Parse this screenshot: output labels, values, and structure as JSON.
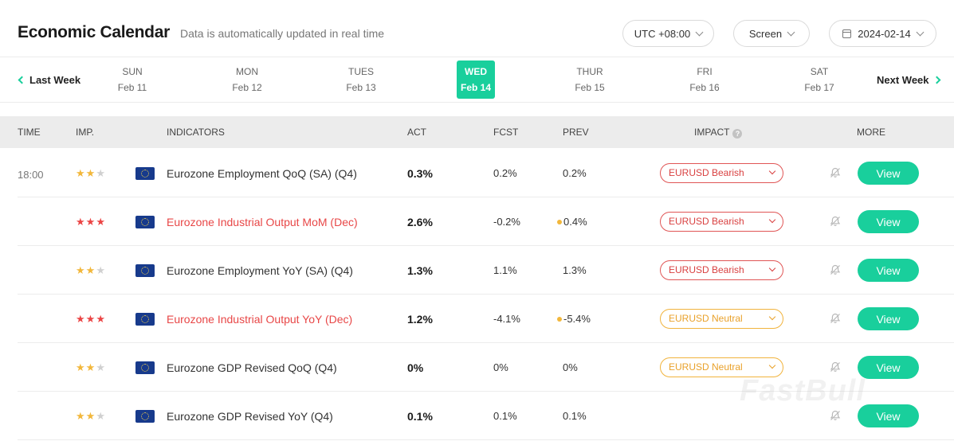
{
  "header": {
    "title": "Economic Calendar",
    "subtitle": "Data is automatically updated in real time",
    "timezone": "UTC +08:00",
    "screen_label": "Screen",
    "date": "2024-02-14"
  },
  "week_nav": {
    "prev_label": "Last Week",
    "next_label": "Next Week",
    "days": [
      {
        "name": "SUN",
        "date": "Feb 11"
      },
      {
        "name": "MON",
        "date": "Feb 12"
      },
      {
        "name": "TUES",
        "date": "Feb 13"
      },
      {
        "name": "WED",
        "date": "Feb 14"
      },
      {
        "name": "THUR",
        "date": "Feb 15"
      },
      {
        "name": "FRI",
        "date": "Feb 16"
      },
      {
        "name": "SAT",
        "date": "Feb 17"
      }
    ],
    "active_index": 3
  },
  "table": {
    "headers": {
      "time": "TIME",
      "importance": "IMP.",
      "indicators": "INDICATORS",
      "actual": "ACT",
      "forecast": "FCST",
      "previous": "PREV",
      "impact": "IMPACT",
      "more": "MORE"
    },
    "view_label": "View",
    "rows": [
      {
        "time": "18:00",
        "stars": 2,
        "star_color": "#f2b73b",
        "indicator": "Eurozone Employment QoQ (SA) (Q4)",
        "highlight": false,
        "act": "0.3%",
        "fcst": "0.2%",
        "prev": "0.2%",
        "prev_revised": false,
        "impact": "EURUSD Bearish",
        "impact_type": "bearish"
      },
      {
        "time": "",
        "stars": 3,
        "star_color": "#eb4545",
        "indicator": "Eurozone Industrial Output MoM (Dec)",
        "highlight": true,
        "act": "2.6%",
        "fcst": "-0.2%",
        "prev": "0.4%",
        "prev_revised": true,
        "impact": "EURUSD Bearish",
        "impact_type": "bearish"
      },
      {
        "time": "",
        "stars": 2,
        "star_color": "#f2b73b",
        "indicator": "Eurozone Employment YoY (SA) (Q4)",
        "highlight": false,
        "act": "1.3%",
        "fcst": "1.1%",
        "prev": "1.3%",
        "prev_revised": false,
        "impact": "EURUSD Bearish",
        "impact_type": "bearish"
      },
      {
        "time": "",
        "stars": 3,
        "star_color": "#eb4545",
        "indicator": "Eurozone Industrial Output YoY (Dec)",
        "highlight": true,
        "act": "1.2%",
        "fcst": "-4.1%",
        "prev": "-5.4%",
        "prev_revised": true,
        "impact": "EURUSD Neutral",
        "impact_type": "neutral"
      },
      {
        "time": "",
        "stars": 2,
        "star_color": "#f2b73b",
        "indicator": "Eurozone GDP Revised QoQ (Q4)",
        "highlight": false,
        "act": "0%",
        "fcst": "0%",
        "prev": "0%",
        "prev_revised": false,
        "impact": "EURUSD Neutral",
        "impact_type": "neutral"
      },
      {
        "time": "",
        "stars": 2,
        "star_color": "#f2b73b",
        "indicator": "Eurozone GDP Revised YoY (Q4)",
        "highlight": false,
        "act": "0.1%",
        "fcst": "0.1%",
        "prev": "0.1%",
        "prev_revised": false,
        "impact": "",
        "impact_type": "none"
      }
    ]
  },
  "watermark": "FastBull",
  "colors": {
    "accent": "#19cf9c",
    "bearish": "#d94040",
    "neutral": "#e9a12a",
    "star_gold": "#f2b73b",
    "star_red": "#eb4545"
  },
  "icons": {
    "flag": "eu-flag-icon",
    "alert": "bell-off-icon",
    "help": "question-icon",
    "calendar": "calendar-icon"
  }
}
